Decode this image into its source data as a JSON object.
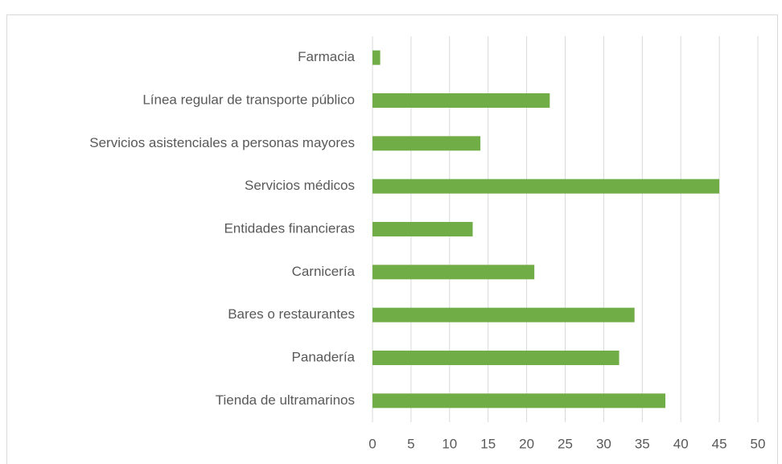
{
  "chart_data": {
    "type": "bar",
    "orientation": "horizontal",
    "categories": [
      "Farmacia",
      "Línea regular de transporte público",
      "Servicios asistenciales a personas mayores",
      "Servicios médicos",
      "Entidades financieras",
      "Carnicería",
      "Bares o restaurantes",
      "Panadería",
      "Tienda de ultramarinos"
    ],
    "values": [
      1,
      23,
      14,
      45,
      13,
      21,
      34,
      32,
      38
    ],
    "color": "#70ad47",
    "xlim": [
      0,
      50
    ],
    "xticks": [
      0,
      5,
      10,
      15,
      20,
      25,
      30,
      35,
      40,
      45,
      50
    ],
    "grid": true
  }
}
